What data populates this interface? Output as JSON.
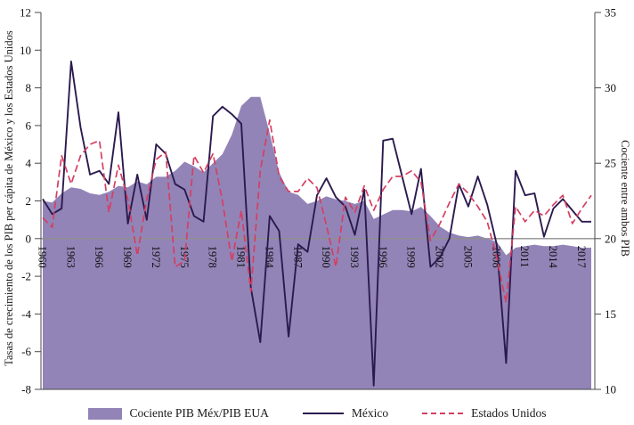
{
  "figure": {
    "left_axis_title": "Tasas de crecimiento de los PIB per cápita de México y los Estados Unidos",
    "right_axis_title": "Cociente entre ambos PIB"
  },
  "legend": {
    "items": [
      {
        "label": "Cociente PIB Méx/PIB EUA"
      },
      {
        "label": "México"
      },
      {
        "label": "Estados Unidos"
      }
    ]
  },
  "chart_data": {
    "type": "line",
    "title": "",
    "x": [
      1960,
      1961,
      1962,
      1963,
      1964,
      1965,
      1966,
      1967,
      1968,
      1969,
      1970,
      1971,
      1972,
      1973,
      1974,
      1975,
      1976,
      1977,
      1978,
      1979,
      1980,
      1981,
      1982,
      1983,
      1984,
      1985,
      1986,
      1987,
      1988,
      1989,
      1990,
      1991,
      1992,
      1993,
      1994,
      1995,
      1996,
      1997,
      1998,
      1999,
      2000,
      2001,
      2002,
      2003,
      2004,
      2005,
      2006,
      2007,
      2008,
      2009,
      2010,
      2011,
      2012,
      2013,
      2014,
      2015,
      2016,
      2017,
      2018
    ],
    "x_ticks": [
      1960,
      1963,
      1966,
      1969,
      1972,
      1975,
      1978,
      1981,
      1984,
      1987,
      1990,
      1993,
      1996,
      1999,
      2002,
      2005,
      2008,
      2011,
      2014,
      2017
    ],
    "left_axis": {
      "label": "Tasas de crecimiento de los PIB per cápita de México y los Estados Unidos",
      "min": -8,
      "max": 12,
      "ticks": [
        12,
        10,
        8,
        6,
        4,
        2,
        0,
        -2,
        -4,
        -6,
        -8
      ]
    },
    "right_axis": {
      "label": "Cociente entre ambos PIB",
      "min": 10,
      "max": 35,
      "ticks": [
        35,
        30,
        25,
        20,
        15,
        10
      ]
    },
    "zero_line": {
      "value": 0,
      "color": "#8f8f8f"
    },
    "grid": false,
    "legend_position": "bottom",
    "series": [
      {
        "name": "Cociente PIB Méx/PIB EUA",
        "type": "area",
        "axis": "right",
        "color": "#9384b7",
        "values": [
          22.5,
          22.4,
          23.0,
          23.4,
          23.3,
          23.0,
          22.9,
          23.1,
          23.5,
          23.4,
          23.8,
          23.6,
          24.1,
          24.1,
          24.5,
          25.1,
          24.8,
          24.4,
          25.0,
          25.6,
          26.9,
          28.8,
          29.4,
          29.4,
          27.0,
          24.4,
          23.1,
          22.9,
          22.3,
          22.5,
          22.8,
          22.6,
          22.5,
          22.3,
          22.5,
          21.3,
          21.6,
          21.9,
          21.9,
          21.8,
          22.1,
          21.5,
          20.8,
          20.4,
          20.2,
          20.1,
          20.2,
          20.0,
          19.8,
          18.9,
          19.4,
          19.5,
          19.6,
          19.5,
          19.5,
          19.6,
          19.5,
          19.4,
          19.4
        ]
      },
      {
        "name": "México",
        "type": "line",
        "style": "solid",
        "axis": "left",
        "color": "#2b1a4e",
        "values": [
          2.1,
          1.3,
          1.6,
          9.4,
          5.9,
          3.4,
          3.6,
          2.9,
          6.7,
          0.8,
          3.4,
          1.0,
          5.0,
          4.5,
          2.9,
          2.6,
          1.2,
          0.9,
          6.5,
          7.0,
          6.6,
          6.1,
          -2.6,
          -5.5,
          1.2,
          0.4,
          -5.2,
          -0.3,
          -0.7,
          2.3,
          3.2,
          2.2,
          1.7,
          0.2,
          2.6,
          -7.8,
          5.2,
          5.3,
          3.3,
          1.3,
          3.7,
          -1.5,
          -1.0,
          0.0,
          2.9,
          1.7,
          3.3,
          1.8,
          -0.3,
          -6.6,
          3.6,
          2.3,
          2.4,
          0.1,
          1.6,
          2.1,
          1.5,
          0.9,
          0.9
        ]
      },
      {
        "name": "Estados Unidos",
        "type": "line",
        "style": "dashed",
        "axis": "left",
        "color": "#d43f63",
        "values": [
          1.1,
          0.6,
          4.4,
          2.9,
          4.4,
          5.0,
          5.2,
          1.4,
          3.9,
          2.1,
          -0.9,
          2.1,
          4.2,
          4.6,
          -1.5,
          -1.2,
          4.4,
          3.5,
          4.5,
          2.0,
          -1.2,
          1.5,
          -2.8,
          3.6,
          6.3,
          3.3,
          2.5,
          2.5,
          3.2,
          2.7,
          0.7,
          -1.5,
          2.2,
          1.4,
          2.8,
          1.5,
          2.6,
          3.3,
          3.3,
          3.6,
          3.0,
          -0.1,
          0.8,
          1.9,
          2.9,
          2.4,
          1.7,
          0.9,
          -1.0,
          -3.4,
          1.7,
          0.9,
          1.5,
          1.2,
          1.8,
          2.3,
          0.8,
          1.6,
          2.3
        ]
      }
    ]
  }
}
